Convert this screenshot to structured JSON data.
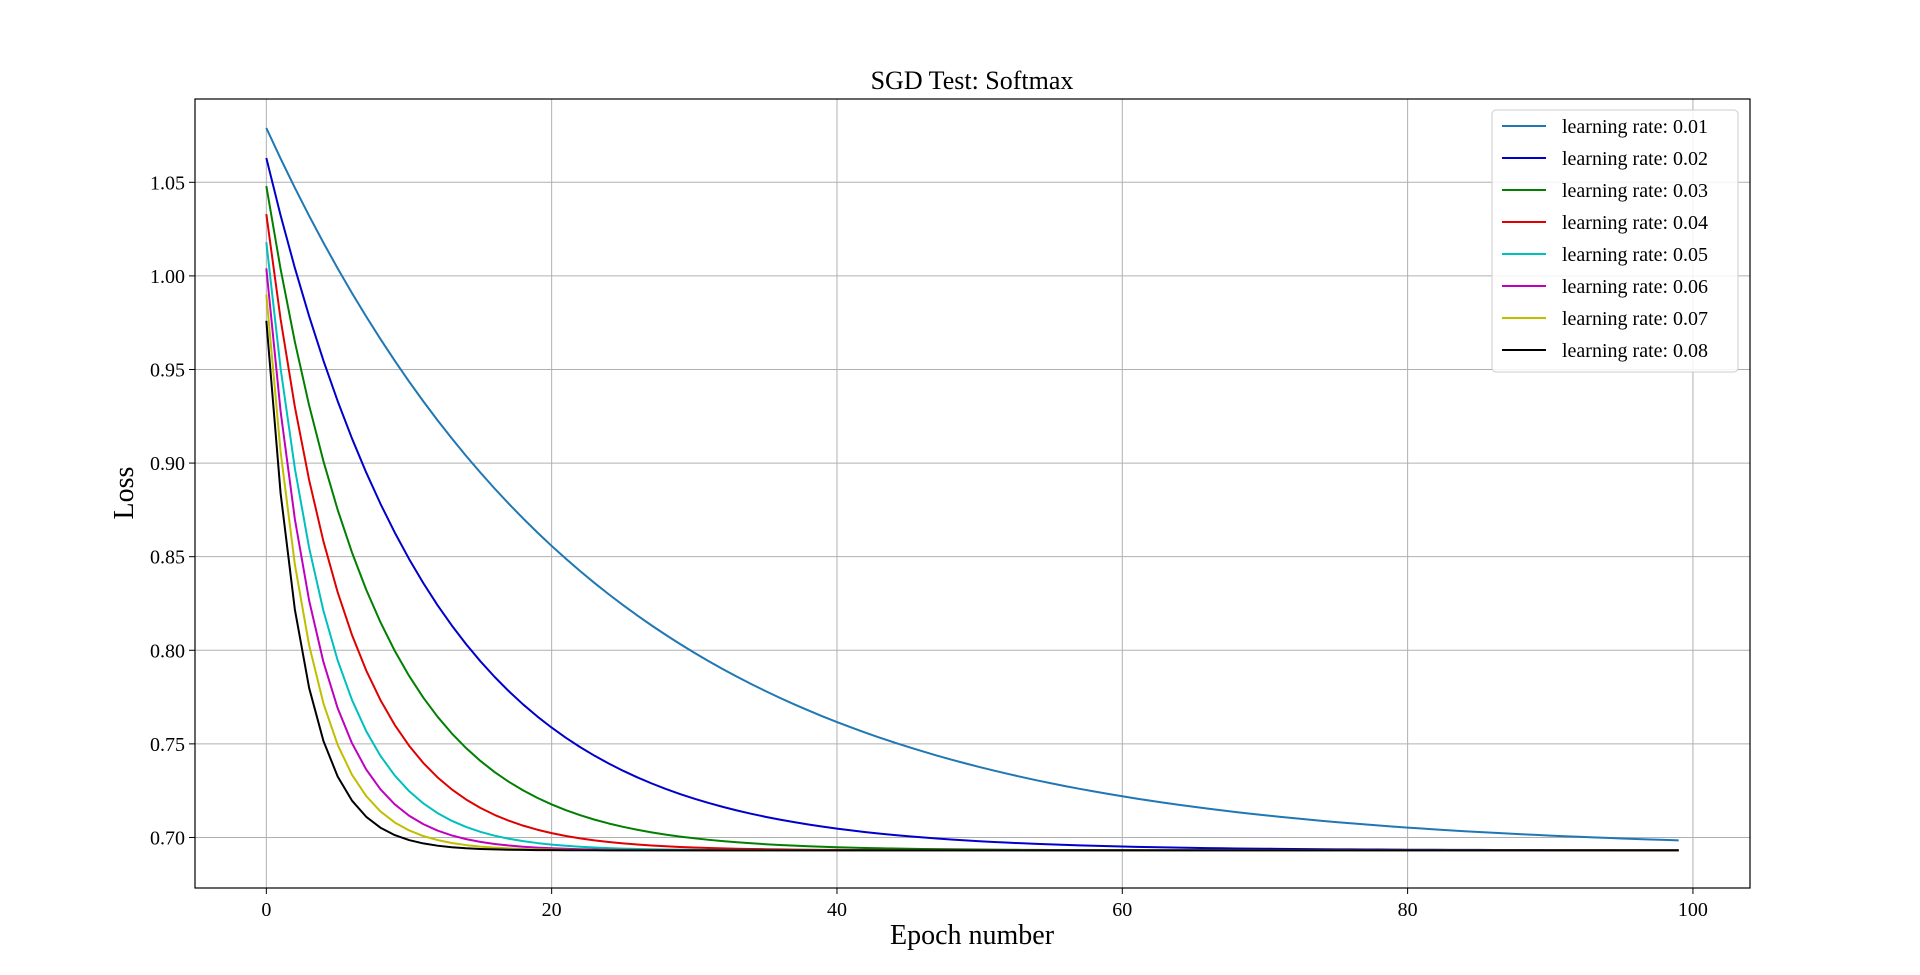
{
  "chart_data": {
    "type": "line",
    "title": "SGD Test: Softmax",
    "xlabel": "Epoch number",
    "ylabel": "Loss",
    "xlim": [
      -5,
      104
    ],
    "ylim": [
      0.673,
      1.0945
    ],
    "xticks": [
      0,
      20,
      40,
      60,
      80,
      100
    ],
    "xtick_labels": [
      "0",
      "20",
      "40",
      "60",
      "80",
      "100"
    ],
    "yticks": [
      0.7,
      0.75,
      0.8,
      0.85,
      0.9,
      0.95,
      1.0,
      1.05
    ],
    "ytick_labels": [
      "0.70",
      "0.75",
      "0.80",
      "0.85",
      "0.90",
      "0.95",
      "1.00",
      "1.05"
    ],
    "grid": true,
    "legend_position": "top-right",
    "x_range": [
      0,
      99
    ],
    "floor": 0.6931,
    "series": [
      {
        "name": "learning rate: 0.01",
        "color": "#1f77b4",
        "y0": 1.079,
        "rate": 0.0432
      },
      {
        "name": "learning rate: 0.02",
        "color": "#0000cc",
        "y0": 1.063,
        "rate": 0.0865
      },
      {
        "name": "learning rate: 0.03",
        "color": "#007f00",
        "y0": 1.048,
        "rate": 0.1336
      },
      {
        "name": "learning rate: 0.04",
        "color": "#e00000",
        "y0": 1.033,
        "rate": 0.1804
      },
      {
        "name": "learning rate: 0.05",
        "color": "#00bfbf",
        "y0": 1.018,
        "rate": 0.2327
      },
      {
        "name": "learning rate: 0.06",
        "color": "#bf00bf",
        "y0": 1.004,
        "rate": 0.2818
      },
      {
        "name": "learning rate: 0.07",
        "color": "#bfbf00",
        "y0": 0.99,
        "rate": 0.3323
      },
      {
        "name": "learning rate: 0.08",
        "color": "#000000",
        "y0": 0.976,
        "rate": 0.3939
      }
    ]
  }
}
